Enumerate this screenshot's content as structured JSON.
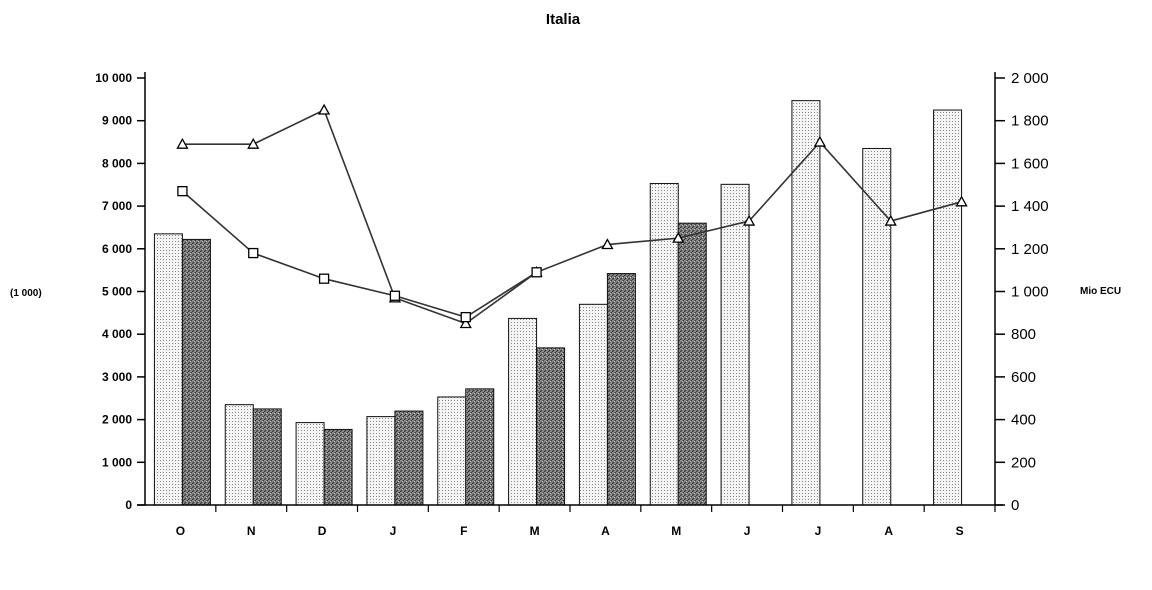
{
  "chart_data": {
    "type": "bar",
    "title": "Italia",
    "ylabel": "(1 000)",
    "y2label": "Mio ECU",
    "categories": [
      "O",
      "N",
      "D",
      "J",
      "F",
      "M",
      "A",
      "M",
      "J",
      "J",
      "A",
      "S"
    ],
    "ylim": [
      0,
      10000
    ],
    "y2lim": [
      0,
      2000
    ],
    "yticks": [
      "0",
      "1 000",
      "2 000",
      "3 000",
      "4 000",
      "5 000",
      "6 000",
      "7 000",
      "8 000",
      "9 000",
      "10 000"
    ],
    "y2ticks": [
      "0",
      "200",
      "400",
      "600",
      "800",
      "1 000",
      "1 200",
      "1 400",
      "1 600",
      "1 800",
      "2 000"
    ],
    "bar_series": [
      {
        "values": [
          6350,
          2350,
          1930,
          2070,
          2530,
          4370,
          4700,
          7530,
          7510,
          9470,
          8350,
          9250
        ],
        "fill": "dotted-light"
      },
      {
        "values": [
          6220,
          2250,
          1770,
          2200,
          2720,
          3680,
          5420,
          6600,
          null,
          null,
          null,
          null
        ],
        "fill": "hatched-dark"
      }
    ],
    "line_series": [
      {
        "marker": "triangle",
        "axis": "right",
        "values": [
          1690,
          1690,
          1850,
          970,
          850,
          1090,
          1220,
          1250,
          1330,
          1700,
          1330,
          1420
        ]
      },
      {
        "marker": "square",
        "axis": "right",
        "values": [
          1470,
          1180,
          1060,
          980,
          880,
          1090,
          null,
          null,
          null,
          null,
          null,
          null
        ]
      }
    ],
    "grid": false
  },
  "colors": {
    "light_bar": "#eeeeee",
    "dark_bar": "#7a7a7a",
    "line": "#333333",
    "axis": "#000000"
  }
}
